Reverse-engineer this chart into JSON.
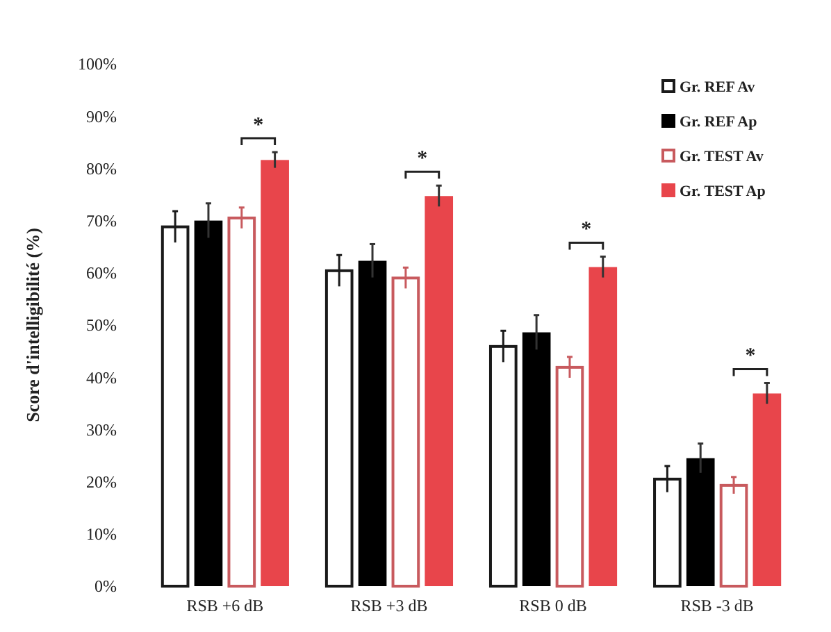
{
  "chart_data": {
    "type": "bar",
    "ylabel": "Score d'intelligibilité (%)",
    "categories": [
      "RSB +6 dB",
      "RSB +3 dB",
      "RSB 0 dB",
      "RSB -3 dB"
    ],
    "ylim": [
      0,
      100
    ],
    "yticks": [
      {
        "value": 0,
        "label": "0%"
      },
      {
        "value": 10,
        "label": "10%"
      },
      {
        "value": 20,
        "label": "20%"
      },
      {
        "value": 30,
        "label": "30%"
      },
      {
        "value": 40,
        "label": "40%"
      },
      {
        "value": 50,
        "label": "50%"
      },
      {
        "value": 60,
        "label": "60%"
      },
      {
        "value": 70,
        "label": "70%"
      },
      {
        "value": 80,
        "label": "80%"
      },
      {
        "value": 90,
        "label": "90%"
      },
      {
        "value": 100,
        "label": "100%"
      }
    ],
    "legend": "top right",
    "grid": false,
    "series": [
      {
        "name": "Gr. REF Av",
        "color": "#1a1a1a",
        "values": [
          68.8,
          60.4,
          45.9,
          20.5
        ],
        "errors": [
          3,
          3,
          3,
          2.5
        ]
      },
      {
        "name": "Gr. REF Ap",
        "color": "#000000",
        "values": [
          70,
          62.3,
          48.6,
          24.5
        ],
        "errors": [
          3.3,
          3.2,
          3.3,
          2.8
        ]
      },
      {
        "name": "Gr. TEST Av",
        "color": "#c85a5e",
        "values": [
          70.5,
          59,
          41.9,
          19.3
        ],
        "errors": [
          2,
          2,
          2,
          1.6
        ]
      },
      {
        "name": "Gr. TEST Ap",
        "color": "#e8454b",
        "values": [
          81.6,
          74.7,
          61.1,
          36.9
        ],
        "errors": [
          1.5,
          2,
          2,
          2
        ]
      }
    ],
    "annotations": [
      "*",
      "*",
      "*",
      "*"
    ]
  }
}
